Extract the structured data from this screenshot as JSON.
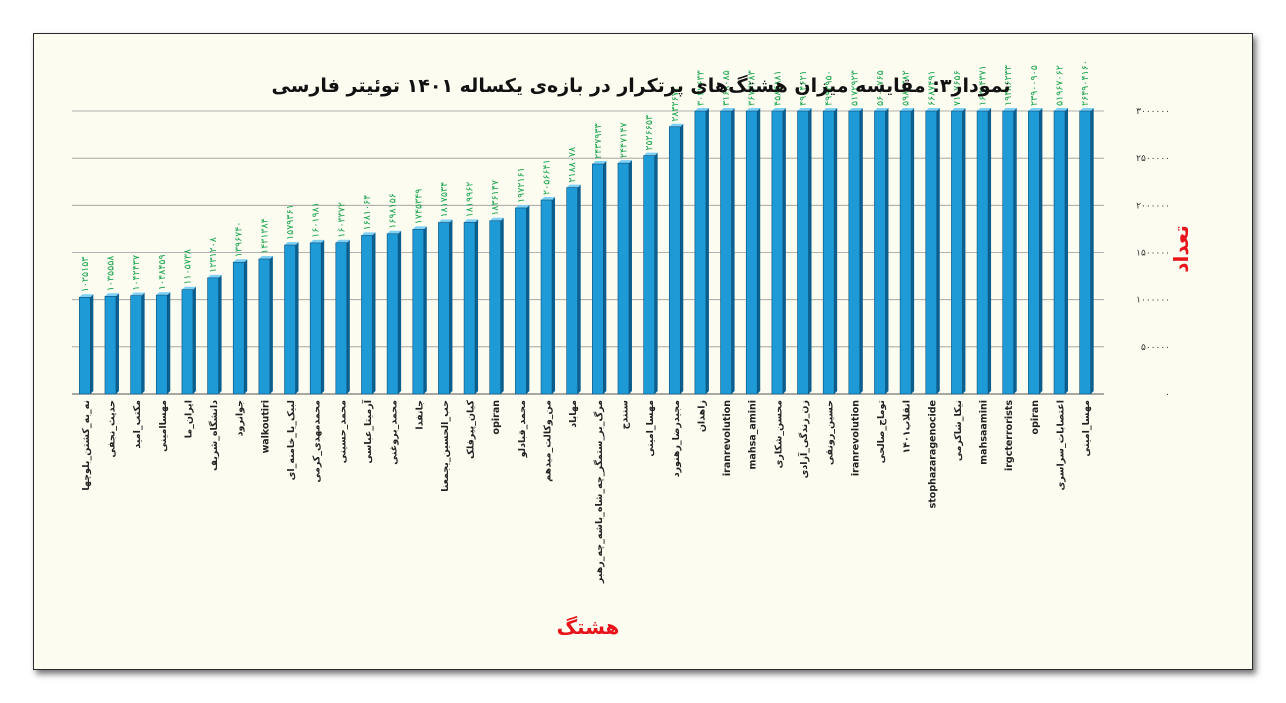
{
  "chart_data": {
    "type": "bar",
    "title": "نمودار۳: مقایسه میزان هشتگ‌های پرتکرار در بازه‌ی یکساله ۱۴۰۱ توئیتر فارسی",
    "xlabel": "هشتگ",
    "ylabel": "تعداد",
    "ylim": [
      0,
      3000000
    ],
    "yticks": [
      0,
      500000,
      1000000,
      1500000,
      2000000,
      2500000,
      3000000
    ],
    "ytick_labels": [
      "۰",
      "۵۰۰۰۰۰",
      "۱۰۰۰۰۰۰",
      "۱۵۰۰۰۰۰",
      "۲۰۰۰۰۰۰",
      "۲۵۰۰۰۰۰",
      "۳۰۰۰۰۰۰"
    ],
    "grid": true,
    "bar_color": "#1e9ad6",
    "label_color": "#17a34a",
    "axis_title_color": "#e8131b",
    "categories": [
      "نه_به_کشتن_بلوچها",
      "حدیث_نجفی",
      "مکتب_امید",
      "مهساامینی",
      "ایران_ما",
      "دانشگاه_شریف",
      "جوانرود",
      "walkoutiri",
      "لبیک_یا_خامنه_ای",
      "محمدمهدی_کرمی",
      "محمد_حسینی",
      "آرمیتا_عباسی",
      "محمد_بروغنی",
      "جانفدا",
      "حب_الحسین_یجمعنا",
      "کیان_پیرفلک",
      "opiran",
      "محمد_قبادلو",
      "من_وکالت_میدهم",
      "مهاباد",
      "مرگ_بر_ستمگر_چه_شاه_باشه_چه_رهبر",
      "سنندج",
      "مهسا_امینی",
      "مجیدرضا_رهنورد",
      "زاهدان",
      "iranrevolution",
      "mahsa_amini",
      "محسن_شکاری",
      "زن_زندگی_آزادی",
      "حسین_رونقی",
      "iranrevolution",
      "توماج_صالحی",
      "انقلاب۱۴۰۱",
      "stophazaragenocide",
      "نیکا_شاکرمی",
      "mahsaamini",
      "irgcterrorists",
      "opiran",
      "اعتصابات_سراسری",
      "مهسا_امینی"
    ],
    "values": [
      1025153,
      1035558,
      1042437,
      1048459,
      1105738,
      1231208,
      1396740,
      1431384,
      1579361,
      1601981,
      1603372,
      1681064,
      1698156,
      1745349,
      1817534,
      1819962,
      1836147,
      1972161,
      2056641,
      2188078,
      2437933,
      2447147,
      2526653,
      2832673,
      3037633,
      3168085,
      3673283,
      4584881,
      4914621,
      4993950,
      5172923,
      5600765,
      5983382,
      6687491,
      7117656,
      16384371,
      19486233,
      23900905,
      51967062,
      264904160
    ],
    "value_labels": [
      "۱۰۲۵۱۵۳",
      "۱۰۳۵۵۵۸",
      "۱۰۴۲۴۳۷",
      "۱۰۴۸۴۵۹",
      "۱۱۰۵۷۳۸",
      "۱۲۳۱۲۰۸",
      "۱۳۹۶۷۴۰",
      "۱۴۳۱۳۸۴",
      "۱۵۷۹۳۶۱",
      "۱۶۰۱۹۸۱",
      "۱۶۰۳۳۷۲",
      "۱۶۸۱۰۶۴",
      "۱۶۹۸۱۵۶",
      "۱۷۴۵۳۴۹",
      "۱۸۱۷۵۳۴",
      "۱۸۱۹۹۶۲",
      "۱۸۳۶۱۴۷",
      "۱۹۷۲۱۶۱",
      "۲۰۵۶۶۴۱",
      "۲۱۸۸۰۷۸",
      "۲۴۳۷۹۳۳",
      "۲۴۴۷۱۴۷",
      "۲۵۲۶۶۵۳",
      "۲۸۳۲۶۷۳",
      "۳۰۳۷۶۳۳",
      "۳۱۶۸۰۸۵",
      "۳۶۷۳۲۸۳",
      "۴۵۸۴۸۸۱",
      "۴۹۱۴۶۲۱",
      "۴۹۹۳۹۵۰",
      "۵۱۷۲۹۲۳",
      "۵۶۰۰۷۶۵",
      "۵۹۸۳۳۸۲",
      "۶۶۸۷۴۹۱",
      "۷۱۱۷۶۵۶",
      "۱۶۳۸۴۳۷۱",
      "۱۹۴۸۶۲۳۳",
      "۲۳۹۰۰۹۰۵",
      "۵۱۹۶۷۰۶۲",
      "۲۶۴۹۰۴۱۶۰"
    ]
  }
}
